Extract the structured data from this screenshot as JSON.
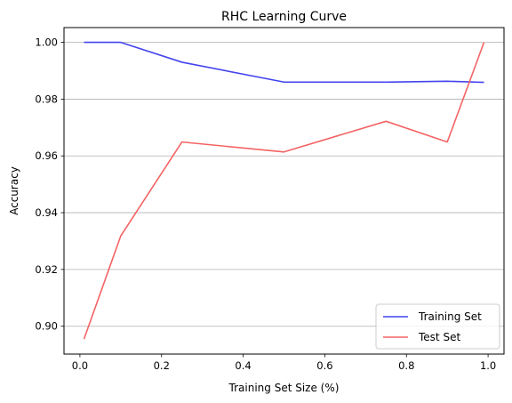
{
  "chart_data": {
    "type": "line",
    "title": "RHC Learning Curve",
    "xlabel": "Training Set Size (%)",
    "ylabel": "Accuracy",
    "xlim": [
      -0.039,
      1.039
    ],
    "ylim": [
      0.8902,
      1.0052
    ],
    "xticks": [
      "0.0",
      "0.2",
      "0.4",
      "0.6",
      "0.8",
      "1.0"
    ],
    "yticks": [
      "0.90",
      "0.92",
      "0.94",
      "0.96",
      "0.98",
      "1.00"
    ],
    "grid": "horizontal",
    "legend_position": "lower-right",
    "series": [
      {
        "name": "Training Set",
        "color": "#4444ee",
        "x": [
          0.01,
          0.1,
          0.25,
          0.5,
          0.75,
          0.9,
          0.99
        ],
        "y": [
          1.0,
          1.0,
          0.993,
          0.986,
          0.986,
          0.9863,
          0.9859
        ]
      },
      {
        "name": "Test Set",
        "color": "#f46464",
        "x": [
          0.01,
          0.1,
          0.25,
          0.5,
          0.75,
          0.9,
          0.99
        ],
        "y": [
          0.8955,
          0.9318,
          0.9649,
          0.9614,
          0.9722,
          0.9649,
          1.0
        ]
      }
    ]
  }
}
